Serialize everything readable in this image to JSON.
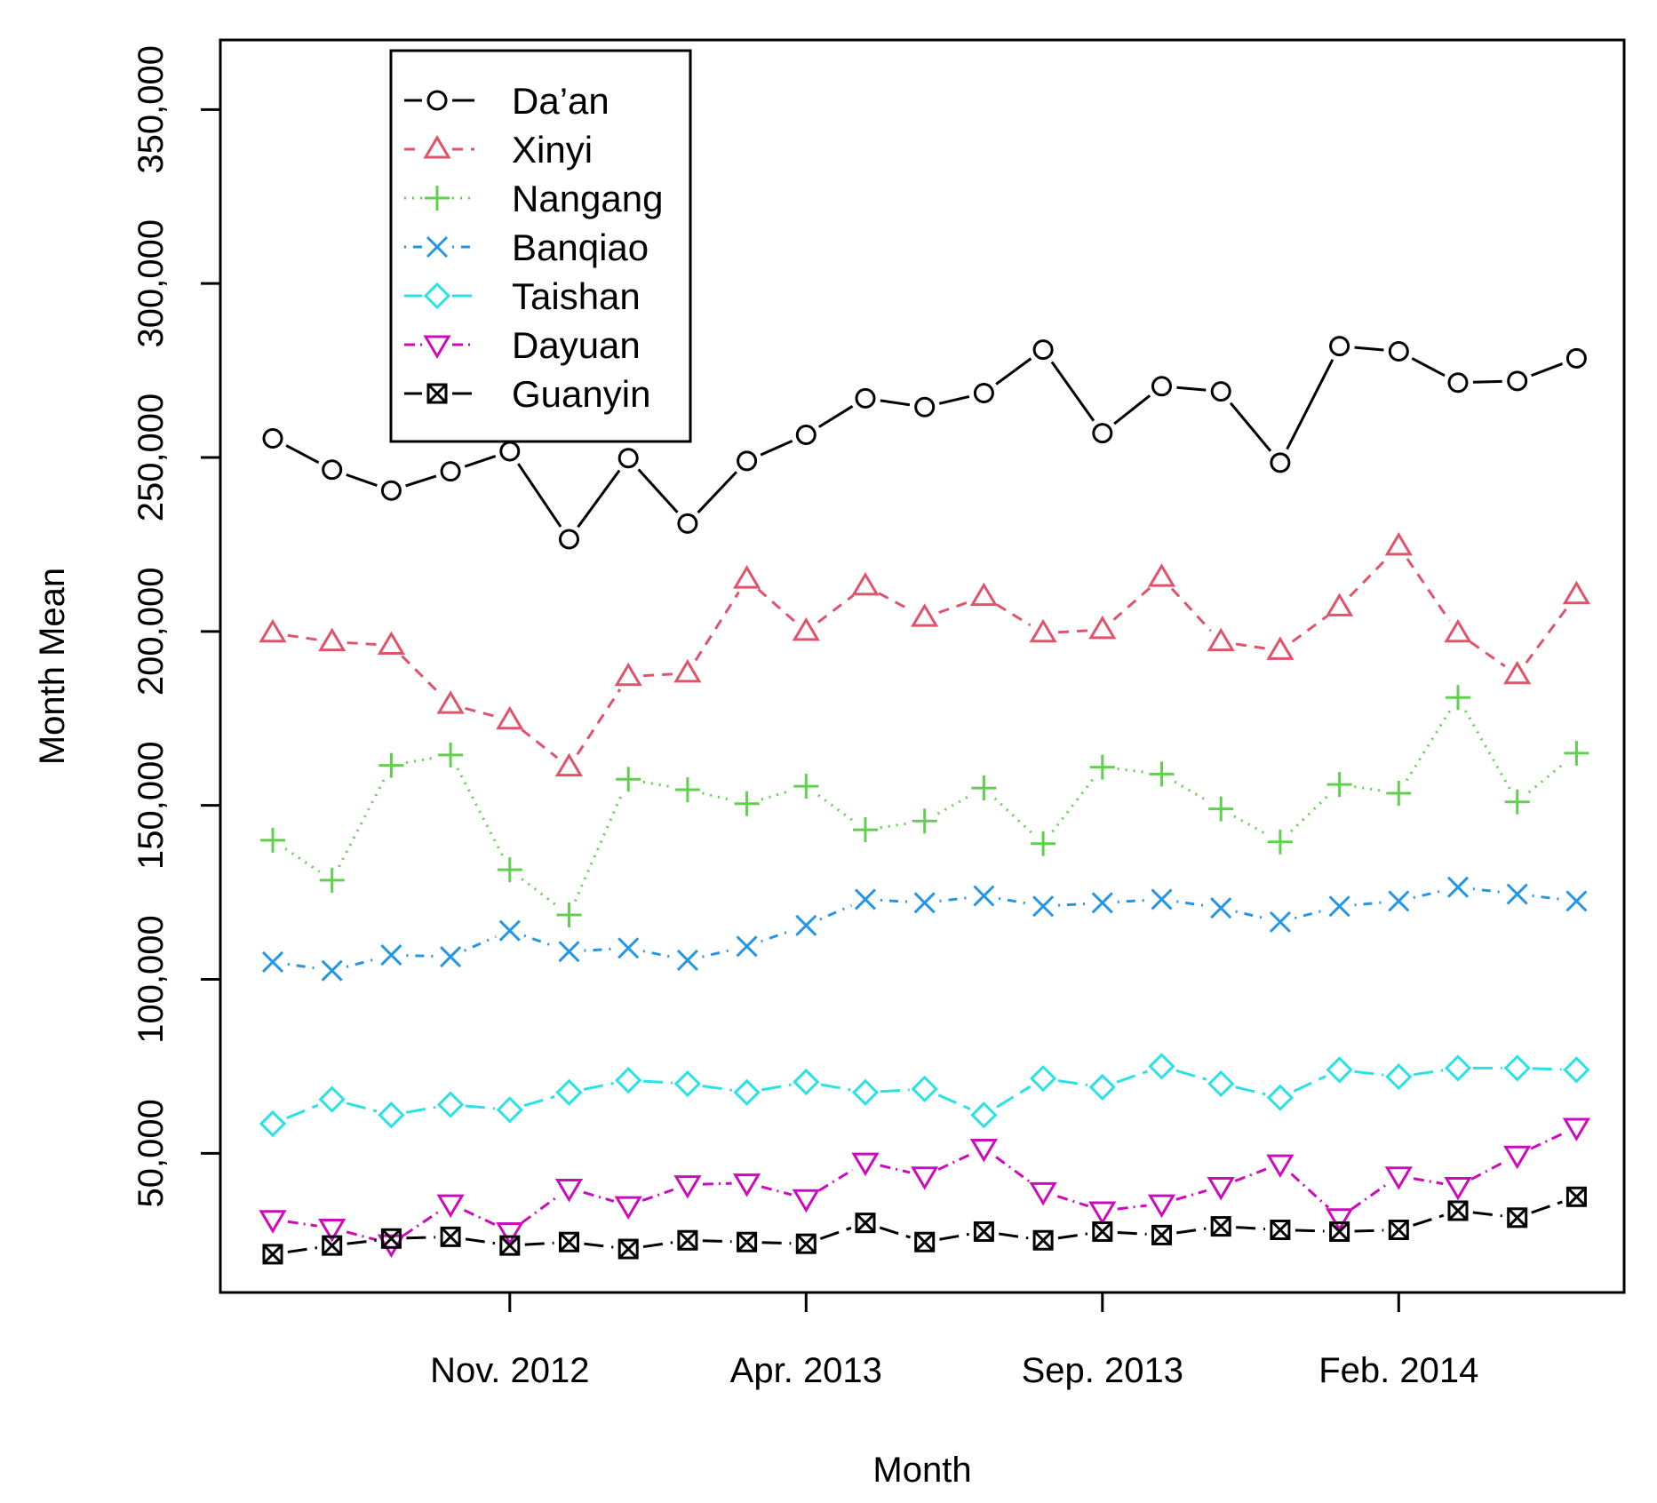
{
  "chart_data": {
    "type": "line",
    "title": "",
    "xlabel": "Month",
    "ylabel": "Month Mean",
    "ylim": [
      10000,
      370000
    ],
    "grid": false,
    "legend_position": "top-left",
    "x_tick_labels": [
      "Nov. 2012",
      "Apr. 2013",
      "Sep. 2013",
      "Feb. 2014"
    ],
    "x_tick_positions": [
      5,
      10,
      15,
      20
    ],
    "y_ticks": [
      50000,
      100000,
      150000,
      200000,
      250000,
      300000,
      350000
    ],
    "y_tick_labels": [
      "50,000",
      "100,000",
      "150,000",
      "200,000",
      "250,000",
      "300,000",
      "350,000"
    ],
    "x": [
      1,
      2,
      3,
      4,
      5,
      6,
      7,
      8,
      9,
      10,
      11,
      12,
      13,
      14,
      15,
      16,
      17,
      18,
      19,
      20,
      21,
      22,
      23
    ],
    "series": [
      {
        "name": "Da’an",
        "color": "#000000",
        "marker": "circle",
        "dash": "",
        "values": [
          255500,
          246500,
          240500,
          246000,
          251800,
          226500,
          249800,
          231000,
          249000,
          256500,
          267000,
          264500,
          268500,
          281000,
          257000,
          270500,
          269000,
          248500,
          282000,
          280500,
          271500,
          272000,
          278500
        ]
      },
      {
        "name": "Xinyi",
        "color": "#df536b",
        "marker": "triangle-up",
        "dash": "12,9",
        "values": [
          199500,
          197000,
          196000,
          179000,
          174500,
          161000,
          187000,
          188000,
          215000,
          200000,
          213000,
          204000,
          210000,
          199500,
          200500,
          215500,
          197000,
          194500,
          207000,
          224500,
          199500,
          187500,
          210500
        ]
      },
      {
        "name": "Nangang",
        "color": "#61d04f",
        "marker": "plus",
        "dash": "2,7",
        "values": [
          140000,
          128500,
          161500,
          164500,
          131500,
          118500,
          157500,
          154500,
          150500,
          155500,
          143000,
          145500,
          155000,
          139000,
          161000,
          159000,
          149000,
          139500,
          156000,
          153500,
          181000,
          151000,
          165000
        ]
      },
      {
        "name": "Banqiao",
        "color": "#2297e6",
        "marker": "x",
        "dash": "2,8,10,8",
        "values": [
          105000,
          102500,
          107000,
          106500,
          114000,
          108000,
          109000,
          105500,
          109500,
          115500,
          123000,
          122000,
          124000,
          121000,
          122000,
          123000,
          120500,
          116500,
          121000,
          122500,
          126500,
          124500,
          122500
        ]
      },
      {
        "name": "Taishan",
        "color": "#28e2e5",
        "marker": "diamond",
        "dash": "22,9",
        "values": [
          58500,
          65500,
          61000,
          64000,
          62500,
          67500,
          71000,
          70000,
          67500,
          70500,
          67500,
          68500,
          61000,
          71500,
          69000,
          75000,
          70000,
          66000,
          74000,
          72000,
          74500,
          74500,
          74000
        ]
      },
      {
        "name": "Dayuan",
        "color": "#cd0bbc",
        "marker": "triangle-down",
        "dash": "12,6,2,6",
        "values": [
          31000,
          28500,
          24000,
          35500,
          27500,
          40000,
          35000,
          41000,
          41500,
          37000,
          47500,
          43500,
          51500,
          39000,
          33500,
          35500,
          40500,
          47000,
          31500,
          43500,
          40500,
          49500,
          57500
        ]
      },
      {
        "name": "Guanyin",
        "color": "#000000",
        "marker": "square-x",
        "dash": "22,9",
        "values": [
          21000,
          23500,
          25500,
          26000,
          23500,
          24500,
          22500,
          25000,
          24500,
          24000,
          30000,
          24500,
          27500,
          25000,
          27500,
          26500,
          29000,
          28000,
          27500,
          28000,
          33500,
          31500,
          37500
        ]
      }
    ]
  }
}
